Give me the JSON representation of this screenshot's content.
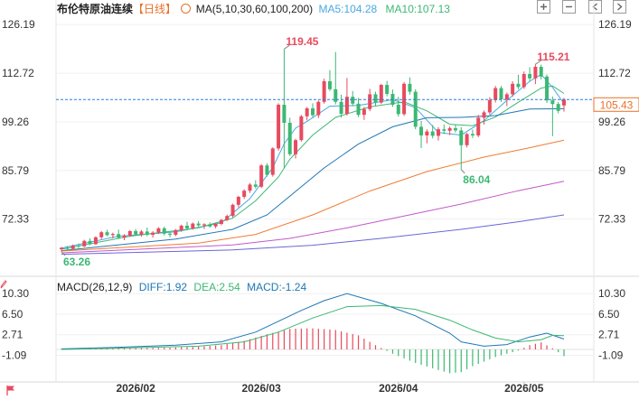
{
  "header": {
    "instrument": "布伦特原油连续",
    "period_label": "【日线】",
    "ma_label": "MA(5,10,30,60,100,200)",
    "ma5_label": "MA5:104.28",
    "ma10_label": "MA10:107.13",
    "macd_label": "MACD(26,12,9)",
    "diff_label": "DIFF:1.92",
    "dea_label": "DEA:2.54",
    "macd_value_label": "MACD:-1.24"
  },
  "toolbar": {
    "icons": [
      "zoom-in-icon",
      "zoom-out-icon",
      "move-left-icon",
      "move-right-icon"
    ]
  },
  "current_price_label": "105.43",
  "colors": {
    "up": "#e84a5f",
    "down": "#3cb873",
    "ma5": "#4aa8e0",
    "ma10": "#3cb873",
    "ma30": "#1f77b4",
    "ma60": "#f07c33",
    "ma100": "#c05ac8",
    "ma200": "#6a66d6",
    "dea": "#3cb873",
    "diff": "#1f77b4",
    "price_line": "#2a7fd4"
  },
  "chart_data": [
    {
      "type": "candlestick",
      "title": "布伦特原油连续【日线】",
      "ylim": [
        60.0,
        128.0
      ],
      "y_ticks": [
        126.19,
        112.72,
        99.26,
        85.79,
        72.33
      ],
      "x_tick_labels": [
        "2026/02",
        "2026/03",
        "2026/04",
        "2026/05"
      ],
      "x_tick_index": [
        13,
        35,
        59,
        81
      ],
      "current_price": 105.43,
      "annotations": [
        {
          "label": "119.45",
          "index": 39,
          "value": 119.45,
          "kind": "high"
        },
        {
          "label": "115.21",
          "index": 83,
          "value": 115.21,
          "kind": "high"
        },
        {
          "label": "86.04",
          "index": 70,
          "value": 86.04,
          "kind": "low"
        },
        {
          "label": "63.26",
          "index": 0,
          "value": 63.26,
          "kind": "low"
        }
      ],
      "candles": [
        [
          64.0,
          64.6,
          63.26,
          64.4
        ],
        [
          64.4,
          64.9,
          63.8,
          64.1
        ],
        [
          64.1,
          65.3,
          63.9,
          65.0
        ],
        [
          65.0,
          65.6,
          64.3,
          64.8
        ],
        [
          64.8,
          66.6,
          64.6,
          66.3
        ],
        [
          66.3,
          67.0,
          65.1,
          65.4
        ],
        [
          65.4,
          67.6,
          65.2,
          67.3
        ],
        [
          67.3,
          69.0,
          66.8,
          68.7
        ],
        [
          68.7,
          69.4,
          67.6,
          67.9
        ],
        [
          67.9,
          68.6,
          67.0,
          68.2
        ],
        [
          68.2,
          69.4,
          66.8,
          67.2
        ],
        [
          67.2,
          68.2,
          66.5,
          67.8
        ],
        [
          67.8,
          69.3,
          67.4,
          69.0
        ],
        [
          69.0,
          69.6,
          67.8,
          68.1
        ],
        [
          68.1,
          69.3,
          67.5,
          68.9
        ],
        [
          68.9,
          70.0,
          67.6,
          68.0
        ],
        [
          68.0,
          69.0,
          67.2,
          68.6
        ],
        [
          68.6,
          70.1,
          68.2,
          69.8
        ],
        [
          69.8,
          70.2,
          67.8,
          68.3
        ],
        [
          68.3,
          68.8,
          67.3,
          68.0
        ],
        [
          68.0,
          69.6,
          67.6,
          69.3
        ],
        [
          69.3,
          70.8,
          68.8,
          70.5
        ],
        [
          70.5,
          71.6,
          69.2,
          69.8
        ],
        [
          69.8,
          71.4,
          69.4,
          71.1
        ],
        [
          71.1,
          71.8,
          70.2,
          70.6
        ],
        [
          70.6,
          71.2,
          69.6,
          70.9
        ],
        [
          70.9,
          71.4,
          70.0,
          70.3
        ],
        [
          70.3,
          71.3,
          69.8,
          71.0
        ],
        [
          71.0,
          72.4,
          70.6,
          72.1
        ],
        [
          72.1,
          73.6,
          71.8,
          73.2
        ],
        [
          73.2,
          76.6,
          72.8,
          76.3
        ],
        [
          76.3,
          78.8,
          75.6,
          78.5
        ],
        [
          78.5,
          80.6,
          77.9,
          80.2
        ],
        [
          80.2,
          82.3,
          79.6,
          81.9
        ],
        [
          81.9,
          83.1,
          80.8,
          81.3
        ],
        [
          81.3,
          87.6,
          80.9,
          87.2
        ],
        [
          87.2,
          87.8,
          84.1,
          84.6
        ],
        [
          84.6,
          92.2,
          84.1,
          91.9
        ],
        [
          91.9,
          104.4,
          91.3,
          104.0
        ],
        [
          104.0,
          119.45,
          86.5,
          99.0
        ],
        [
          99.0,
          100.4,
          89.8,
          90.3
        ],
        [
          90.3,
          94.6,
          89.1,
          94.2
        ],
        [
          94.2,
          101.2,
          93.8,
          100.8
        ],
        [
          100.8,
          103.4,
          99.7,
          103.0
        ],
        [
          103.0,
          104.4,
          100.5,
          101.1
        ],
        [
          101.1,
          105.2,
          100.3,
          104.8
        ],
        [
          104.8,
          111.2,
          104.3,
          110.5
        ],
        [
          110.5,
          113.6,
          107.8,
          108.3
        ],
        [
          108.3,
          118.6,
          104.1,
          104.8
        ],
        [
          104.8,
          106.8,
          100.4,
          101.5
        ],
        [
          101.5,
          111.4,
          101.0,
          106.2
        ],
        [
          106.2,
          107.8,
          103.6,
          104.3
        ],
        [
          104.3,
          105.9,
          100.6,
          101.2
        ],
        [
          101.2,
          103.4,
          99.8,
          102.8
        ],
        [
          102.8,
          108.4,
          102.2,
          106.9
        ],
        [
          106.9,
          107.6,
          103.7,
          104.6
        ],
        [
          104.6,
          109.8,
          104.2,
          109.5
        ],
        [
          109.5,
          110.6,
          106.3,
          107.0
        ],
        [
          107.0,
          108.2,
          103.4,
          104.0
        ],
        [
          104.0,
          106.2,
          100.7,
          101.4
        ],
        [
          101.4,
          110.3,
          100.9,
          109.8
        ],
        [
          109.8,
          111.6,
          106.8,
          107.6
        ],
        [
          107.6,
          108.3,
          97.2,
          97.9
        ],
        [
          97.9,
          99.5,
          92.0,
          95.5
        ],
        [
          95.5,
          97.2,
          93.3,
          96.6
        ],
        [
          96.6,
          98.4,
          94.7,
          95.4
        ],
        [
          95.4,
          97.8,
          94.1,
          97.2
        ],
        [
          97.2,
          98.5,
          95.9,
          96.8
        ],
        [
          96.8,
          98.0,
          95.6,
          97.5
        ],
        [
          97.5,
          98.6,
          96.3,
          96.9
        ],
        [
          96.9,
          97.8,
          86.04,
          92.8
        ],
        [
          92.8,
          96.2,
          92.2,
          95.9
        ],
        [
          95.9,
          97.1,
          94.8,
          95.5
        ],
        [
          95.5,
          101.2,
          95.0,
          100.4
        ],
        [
          100.4,
          102.4,
          98.5,
          101.9
        ],
        [
          101.9,
          106.1,
          101.3,
          105.3
        ],
        [
          105.3,
          109.2,
          104.6,
          108.6
        ],
        [
          108.6,
          109.2,
          104.8,
          105.5
        ],
        [
          105.5,
          107.4,
          103.6,
          106.9
        ],
        [
          106.9,
          110.5,
          106.2,
          109.8
        ],
        [
          109.8,
          112.3,
          108.3,
          108.9
        ],
        [
          108.9,
          113.2,
          108.4,
          112.5
        ],
        [
          112.5,
          114.4,
          110.6,
          111.3
        ],
        [
          111.3,
          115.21,
          109.7,
          114.5
        ],
        [
          114.5,
          115.1,
          111.0,
          111.8
        ],
        [
          111.8,
          112.4,
          104.5,
          105.2
        ],
        [
          105.2,
          106.3,
          95.3,
          104.2
        ],
        [
          104.2,
          104.8,
          101.6,
          102.3
        ],
        [
          103.8,
          105.9,
          102.1,
          105.43
        ]
      ],
      "series": [
        {
          "name": "MA5",
          "values": [
            [
              0,
              64.3
            ],
            [
              10,
              67.6
            ],
            [
              20,
              68.8
            ],
            [
              28,
              71.3
            ],
            [
              33,
              78.0
            ],
            [
              37,
              86.6
            ],
            [
              39,
              93.2
            ],
            [
              41,
              97.5
            ],
            [
              43,
              99.4
            ],
            [
              47,
              103.6
            ],
            [
              52,
              103.8
            ],
            [
              58,
              105.4
            ],
            [
              62,
              103.2
            ],
            [
              66,
              96.3
            ],
            [
              70,
              95.6
            ],
            [
              74,
              99.6
            ],
            [
              78,
              105.2
            ],
            [
              82,
              110.5
            ],
            [
              84,
              112.4
            ],
            [
              86,
              108.8
            ],
            [
              88,
              104.28
            ]
          ]
        },
        {
          "name": "MA10",
          "values": [
            [
              0,
              64.0
            ],
            [
              12,
              67.6
            ],
            [
              24,
              69.9
            ],
            [
              30,
              72.6
            ],
            [
              34,
              77.4
            ],
            [
              38,
              84.0
            ],
            [
              40,
              88.9
            ],
            [
              44,
              95.6
            ],
            [
              48,
              100.5
            ],
            [
              54,
              103.4
            ],
            [
              60,
              104.8
            ],
            [
              64,
              102.3
            ],
            [
              68,
              98.6
            ],
            [
              72,
              98.2
            ],
            [
              76,
              100.6
            ],
            [
              80,
              104.7
            ],
            [
              84,
              108.6
            ],
            [
              86,
              109.2
            ],
            [
              88,
              107.13
            ]
          ]
        },
        {
          "name": "MA30",
          "values": [
            [
              0,
              63.6
            ],
            [
              20,
              66.8
            ],
            [
              30,
              69.5
            ],
            [
              36,
              73.5
            ],
            [
              40,
              78.7
            ],
            [
              46,
              86.5
            ],
            [
              52,
              93.1
            ],
            [
              58,
              97.9
            ],
            [
              64,
              100.4
            ],
            [
              70,
              100.5
            ],
            [
              76,
              101.0
            ],
            [
              82,
              102.8
            ],
            [
              88,
              102.9
            ]
          ]
        },
        {
          "name": "MA60",
          "values": [
            [
              0,
              63.5
            ],
            [
              24,
              65.7
            ],
            [
              34,
              68.1
            ],
            [
              44,
              73.5
            ],
            [
              54,
              80.1
            ],
            [
              64,
              85.5
            ],
            [
              74,
              89.5
            ],
            [
              82,
              92.1
            ],
            [
              88,
              94.2
            ]
          ]
        },
        {
          "name": "MA100",
          "values": [
            [
              0,
              63.0
            ],
            [
              30,
              65.2
            ],
            [
              40,
              67.0
            ],
            [
              50,
              69.9
            ],
            [
              60,
              73.2
            ],
            [
              70,
              76.5
            ],
            [
              80,
              80.2
            ],
            [
              88,
              82.8
            ]
          ]
        },
        {
          "name": "MA200",
          "values": [
            [
              0,
              62.6
            ],
            [
              30,
              63.8
            ],
            [
              44,
              65.1
            ],
            [
              56,
              67.0
            ],
            [
              70,
              69.5
            ],
            [
              80,
              71.6
            ],
            [
              88,
              73.5
            ]
          ]
        }
      ]
    },
    {
      "type": "macd",
      "title": "MACD(26,12,9)",
      "ylim": [
        -5.5,
        11.5
      ],
      "y_ticks": [
        10.3,
        6.5,
        2.71,
        -1.09
      ],
      "series": [
        {
          "name": "DIFF",
          "values": [
            [
              0,
              0.1
            ],
            [
              10,
              0.4
            ],
            [
              20,
              0.8
            ],
            [
              28,
              1.4
            ],
            [
              34,
              3.2
            ],
            [
              38,
              5.2
            ],
            [
              42,
              7.2
            ],
            [
              46,
              9.0
            ],
            [
              50,
              10.3
            ],
            [
              56,
              8.5
            ],
            [
              62,
              6.2
            ],
            [
              68,
              3.0
            ],
            [
              70,
              1.4
            ],
            [
              74,
              0.6
            ],
            [
              78,
              0.9
            ],
            [
              82,
              2.3
            ],
            [
              85,
              3.0
            ],
            [
              88,
              1.92
            ]
          ]
        },
        {
          "name": "DEA",
          "values": [
            [
              0,
              0.0
            ],
            [
              12,
              0.3
            ],
            [
              24,
              0.6
            ],
            [
              32,
              1.4
            ],
            [
              38,
              3.2
            ],
            [
              44,
              5.8
            ],
            [
              50,
              7.9
            ],
            [
              56,
              8.1
            ],
            [
              62,
              7.4
            ],
            [
              68,
              5.4
            ],
            [
              72,
              3.6
            ],
            [
              76,
              2.1
            ],
            [
              80,
              1.4
            ],
            [
              84,
              1.8
            ],
            [
              86,
              2.6
            ],
            [
              88,
              2.54
            ]
          ]
        },
        {
          "name": "MACD",
          "values": [
            [
              0,
              0.1
            ],
            [
              6,
              0.2
            ],
            [
              12,
              0.2
            ],
            [
              18,
              0.3
            ],
            [
              24,
              0.5
            ],
            [
              28,
              0.8
            ],
            [
              32,
              1.6
            ],
            [
              36,
              2.8
            ],
            [
              40,
              3.8
            ],
            [
              44,
              3.9
            ],
            [
              48,
              3.6
            ],
            [
              52,
              2.6
            ],
            [
              55,
              0.8
            ],
            [
              58,
              -0.8
            ],
            [
              62,
              -2.5
            ],
            [
              66,
              -3.8
            ],
            [
              68,
              -4.4
            ],
            [
              70,
              -4.2
            ],
            [
              72,
              -3.1
            ],
            [
              76,
              -1.4
            ],
            [
              80,
              -0.2
            ],
            [
              82,
              0.8
            ],
            [
              84,
              1.3
            ],
            [
              86,
              0.2
            ],
            [
              88,
              -1.24
            ]
          ]
        }
      ]
    }
  ]
}
